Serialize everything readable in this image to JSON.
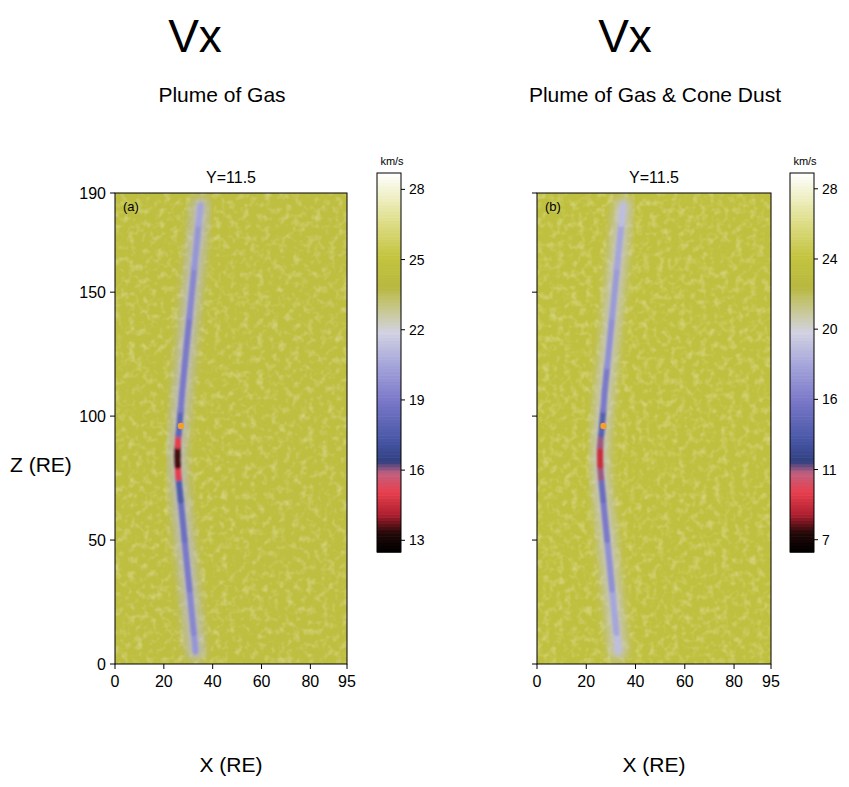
{
  "chart_data": [
    {
      "type": "heatmap",
      "title": "Vx",
      "subtitle": "Plume of Gas",
      "panel_label": "(a)",
      "plot_title": "Y=11.5",
      "xlabel": "X (RE)",
      "ylabel": "Z (RE)",
      "xlim": [
        0,
        95
      ],
      "ylim": [
        0,
        190
      ],
      "xticks": [
        0,
        20,
        40,
        60,
        80,
        95
      ],
      "yticks": [
        0,
        50,
        100,
        150,
        190
      ],
      "colorbar": {
        "label": "km/s",
        "range": [
          12.5,
          28.7
        ],
        "ticks": [
          13,
          16,
          19,
          22,
          25,
          28
        ]
      },
      "background_value": 24.5,
      "plume": {
        "x": [
          33,
          31.5,
          29.5,
          27.5,
          26.3,
          25.8,
          25.6,
          25.6,
          25.8,
          26.3,
          27.5,
          29.5,
          31.5,
          33.5,
          35
        ],
        "z": [
          5,
          20,
          40,
          60,
          72,
          78,
          82,
          86,
          90,
          95,
          110,
          130,
          150,
          170,
          185
        ],
        "values": [
          20,
          19.5,
          19,
          18.5,
          17.5,
          15,
          13.5,
          13.5,
          15,
          18,
          19,
          19,
          19.5,
          20,
          20.5
        ]
      },
      "source": {
        "x": 27,
        "z": 96
      }
    },
    {
      "type": "heatmap",
      "title": "Vx",
      "subtitle": "Plume of Gas & Cone Dust",
      "panel_label": "(b)",
      "plot_title": "Y=11.5",
      "xlabel": "X (RE)",
      "tick_labels": "x",
      "xlim": [
        0,
        95
      ],
      "ylim": [
        0,
        190
      ],
      "xticks": [
        0,
        20,
        40,
        60,
        80,
        95
      ],
      "yticks": [
        0,
        50,
        100,
        150,
        190
      ],
      "colorbar": {
        "label": "km/s",
        "range": [
          6.3,
          28.9
        ],
        "ticks": [
          7,
          11,
          16,
          20,
          24,
          28
        ]
      },
      "background_value": 23.5,
      "plume": {
        "x": [
          33,
          31.5,
          29.5,
          27.5,
          26.3,
          25.8,
          25.6,
          25.6,
          25.8,
          26.3,
          27.5,
          29.5,
          31.5,
          33.5,
          35
        ],
        "z": [
          5,
          20,
          40,
          60,
          72,
          78,
          82,
          86,
          90,
          95,
          110,
          130,
          150,
          170,
          185
        ],
        "values": [
          19,
          18,
          17,
          16,
          15,
          11,
          9,
          9,
          11,
          14,
          16,
          17,
          17.5,
          18,
          19
        ]
      },
      "source": {
        "x": 27,
        "z": 96
      }
    }
  ]
}
